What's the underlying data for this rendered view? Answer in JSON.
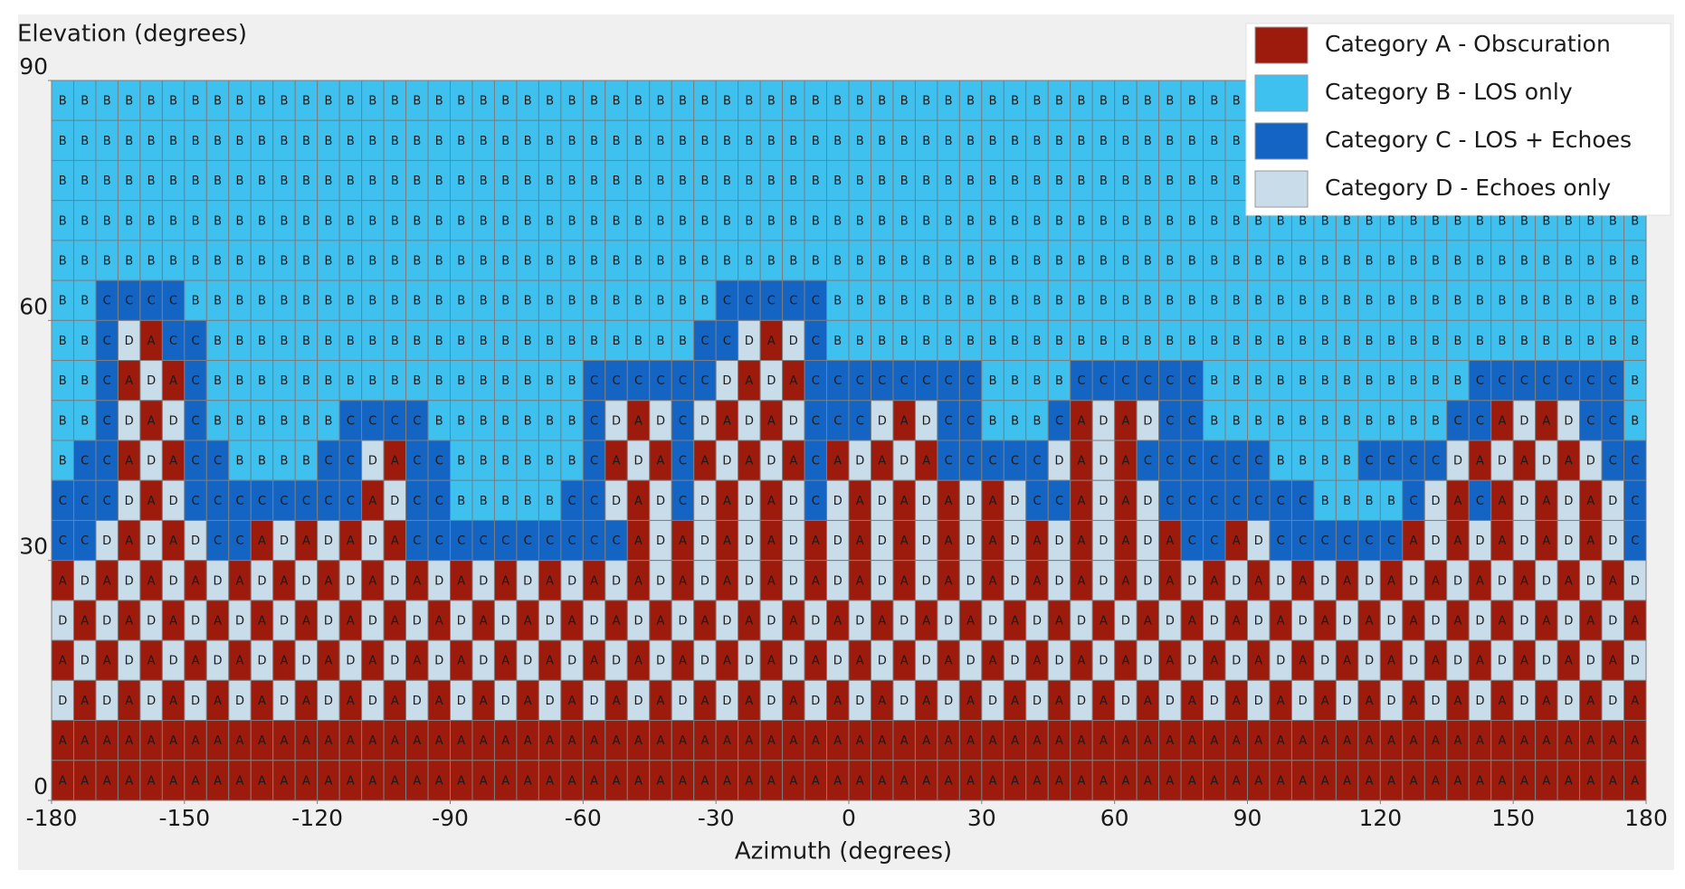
{
  "chart_data": {
    "type": "heatmap",
    "y_label": "Elevation (degrees)",
    "x_label": "Azimuth (degrees)",
    "xlim": [
      -180,
      180
    ],
    "xticks": [
      -180,
      -150,
      -120,
      -90,
      -60,
      -30,
      0,
      30,
      60,
      90,
      120,
      150,
      180
    ],
    "ylim": [
      0,
      90
    ],
    "yticks": [
      0,
      30,
      60,
      90
    ],
    "legend_loc": "upper right",
    "legend": [
      {
        "code": "A",
        "label": "Category A - Obscuration",
        "color": "#9c1b0c"
      },
      {
        "code": "B",
        "label": "Category B - LOS only",
        "color": "#3fc1f0"
      },
      {
        "code": "C",
        "label": "Category C - LOS + Echoes",
        "color": "#1364c3"
      },
      {
        "code": "D",
        "label": "Category D - Echoes only",
        "color": "#c9dcea"
      }
    ],
    "cells": [
      "BBBBBBBBBBBBBBBBBBBBBBBBBBBBBBBBBBBBBBBBBBBBBBBBBBBBBBBBBBBBBBBBBBBBBBBB",
      "BBBBBBBBBBBBBBBBBBBBBBBBBBBBBBBBBBBBBBBBBBBBBBBBBBBBBBBBBBBBBBBBBBBBBBBB",
      "BBBBBBBBBBBBBBBBBBBBBBBBBBBBBBBBBBBBBBBBBBBBBBBBBBBBBBBBBBBBBBBBBBBBBBBB",
      "BBBBBBBBBBBBBBBBBBBBBBBBBBBBBBBBBBBBBBBBBBBBBBBBBBBBBBBBBBBBBBBBBBBBBBBB",
      "BBBBBBBBBBBBBBBBBBBBBBBBBBBBBBBBBBBBBBBBBBBBBBBBBBBBBBBBBBBBBBBBBBBBBBBB",
      "BBCCCCBBBBBBBBBBBBBBBBBBBBBBBBCCCCCBBBBBBBBBBBBBBBBBBBBBBBBBBBBBBBBBBBBB",
      "BBCDACCBBBBBBBBBBBBBBBBBBBBBBCCDADCBBBBBBBBBBBBBBBBBBBBBBBBBBBBBBBBBBBBB",
      "BBCADACBBBBBBBBBBBBBBBBBCCCCCCDADACCCCCCCCBBBBCCCCCCBBBBBBBBBBBBCCCCCCCB",
      "BBCDADCBBBBBBCCCCBBBBBBBCDADCDADADCCCDADCCBBBCADADCCBBBBBBBBBBBCCADADCCB",
      "BCCADACCBBBBCCDACCBBBBBBCADACADADACADADACCCCCDADACCCCCCBBBBCCCCDADADADCC",
      "CCCDADCCCCCCCCADCCBBBBBCCDADCDADADCDADADADADCCADADCCCCCCCBBBBCDACADADADC",
      "CCDADADCCADADADACCCCCCCCCCADADADADADADADADADADADADACCADCCCCCCADADADADADC",
      "ADADADADADADADADADADADADADADADADADADADADADADADADADADADADADADADADADADADAD",
      "DADADADADADADADADADADADADADADADADADADADADADADADADADADADADADADADADADADADA",
      "ADADADADADADADADADADADADADADADADADADADADADADADADADADADADADADADADADADADAD",
      "DADADADADADADADADADADADADADADADADADADADADADADADADADADADADADADADADADADADA",
      "AAAAAAAAAAAAAAAAAAAAAAAAAAAAAAAAAAAAAAAAAAAAAAAAAAAAAAAAAAAAAAAAAAAAAAAA",
      "AAAAAAAAAAAAAAAAAAAAAAAAAAAAAAAAAAAAAAAAAAAAAAAAAAAAAAAAAAAAAAAAAAAAAAAA"
    ]
  }
}
